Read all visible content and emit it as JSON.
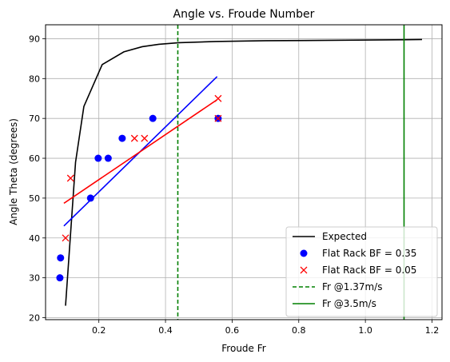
{
  "chart_data": {
    "type": "scatter",
    "title": "Angle vs. Froude Number",
    "xlabel": "Froude Fr",
    "ylabel": "Angle Theta (degrees)",
    "xlim": [
      0.04,
      1.23
    ],
    "ylim": [
      19.5,
      93.5
    ],
    "xticks": [
      0.2,
      0.4,
      0.6,
      0.8,
      1.0,
      1.2
    ],
    "xtick_labels": [
      "0.2",
      "0.4",
      "0.6",
      "0.8",
      "1.0",
      "1.2"
    ],
    "yticks": [
      20,
      30,
      40,
      50,
      60,
      70,
      80,
      90
    ],
    "ytick_labels": [
      "20",
      "30",
      "40",
      "50",
      "60",
      "70",
      "80",
      "90"
    ],
    "grid": true,
    "legend_position": "lower-right",
    "legend": [
      {
        "label": "Expected",
        "style": "line",
        "color": "#000000"
      },
      {
        "label": "Flat Rack BF = 0.35",
        "style": "circle",
        "color": "#0000ff"
      },
      {
        "label": "Flat Rack BF = 0.05",
        "style": "x",
        "color": "#ff0000"
      },
      {
        "label": "Fr @1.37m/s",
        "style": "dashed",
        "color": "#008000"
      },
      {
        "label": "Fr @3.5m/s",
        "style": "solid",
        "color": "#008000"
      }
    ],
    "series": [
      {
        "name": "Expected",
        "kind": "line",
        "color": "#000000",
        "x": [
          0.1,
          0.13,
          0.155,
          0.21,
          0.275,
          0.33,
          0.38,
          0.44,
          0.55,
          0.7,
          0.9,
          1.05,
          1.17
        ],
        "y": [
          23,
          59,
          73,
          83.5,
          86.7,
          88,
          88.6,
          89,
          89.3,
          89.5,
          89.6,
          89.7,
          89.8
        ]
      },
      {
        "name": "Flat Rack BF = 0.35",
        "kind": "scatter",
        "marker": "circle",
        "color": "#0000ff",
        "x": [
          0.083,
          0.085,
          0.175,
          0.198,
          0.228,
          0.27,
          0.362,
          0.558
        ],
        "y": [
          30,
          35,
          50,
          60,
          60,
          65,
          70,
          70
        ]
      },
      {
        "name": "Flat Rack BF = 0.05",
        "kind": "scatter",
        "marker": "x",
        "color": "#ff0000",
        "x": [
          0.1,
          0.115,
          0.307,
          0.337,
          0.558,
          0.558
        ],
        "y": [
          40,
          55,
          65,
          65,
          75,
          70
        ]
      },
      {
        "kind": "fit",
        "color": "#0000ff",
        "x": [
          0.095,
          0.555
        ],
        "y": [
          43,
          80.5
        ]
      },
      {
        "kind": "fit",
        "color": "#ff0000",
        "x": [
          0.095,
          0.555
        ],
        "y": [
          48.7,
          74.7
        ]
      },
      {
        "name": "Fr @1.37m/s",
        "kind": "vline",
        "dash": true,
        "color": "#008000",
        "x": 0.437
      },
      {
        "name": "Fr @3.5m/s",
        "kind": "vline",
        "dash": false,
        "color": "#008000",
        "x": 1.116
      }
    ]
  }
}
